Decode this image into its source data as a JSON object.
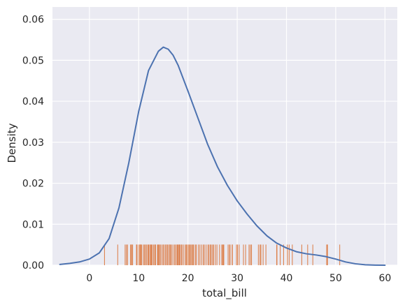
{
  "chart_data": {
    "type": "kde_with_rug",
    "xlabel": "total_bill",
    "ylabel": "Density",
    "xlim": [
      -7.5,
      62.5
    ],
    "ylim": [
      0,
      0.063
    ],
    "xticks": [
      0,
      10,
      20,
      30,
      40,
      50,
      60
    ],
    "yticks": [
      0.0,
      0.01,
      0.02,
      0.03,
      0.04,
      0.05,
      0.06
    ],
    "xtick_labels": [
      "0",
      "10",
      "20",
      "30",
      "40",
      "50",
      "60"
    ],
    "ytick_labels": [
      "0.00",
      "0.01",
      "0.02",
      "0.03",
      "0.04",
      "0.05",
      "0.06"
    ],
    "grid": true,
    "colors": {
      "background": "#eaeaf2",
      "grid": "#ffffff",
      "kde": "#4c72b0",
      "rug": "#dd8452",
      "text": "#262626"
    },
    "kde": {
      "x": [
        -6,
        -4,
        -2,
        0,
        2,
        4,
        6,
        8,
        10,
        12,
        14,
        15,
        16,
        17,
        18,
        20,
        22,
        24,
        26,
        28,
        30,
        32,
        34,
        36,
        38,
        40,
        42,
        44,
        46,
        48,
        50,
        52,
        54,
        56,
        58,
        60
      ],
      "y": [
        0.0002,
        0.00045,
        0.0008,
        0.0015,
        0.003,
        0.0065,
        0.014,
        0.025,
        0.0375,
        0.0475,
        0.0522,
        0.0532,
        0.0527,
        0.0512,
        0.0488,
        0.0425,
        0.036,
        0.0295,
        0.024,
        0.0195,
        0.0157,
        0.0125,
        0.0096,
        0.0072,
        0.0054,
        0.0042,
        0.0033,
        0.0028,
        0.0025,
        0.0021,
        0.0015,
        0.0008,
        0.00035,
        0.0001,
        3e-05,
        1e-05
      ]
    },
    "rug": [
      3.07,
      5.75,
      7.25,
      7.51,
      7.74,
      8.35,
      8.52,
      8.58,
      8.77,
      9.55,
      9.6,
      9.68,
      10.07,
      10.27,
      10.33,
      10.34,
      10.51,
      10.65,
      11.02,
      11.24,
      11.35,
      11.61,
      11.87,
      12.03,
      12.26,
      12.43,
      12.6,
      12.76,
      13.03,
      13.27,
      13.37,
      13.42,
      13.81,
      13.94,
      14.07,
      14.26,
      14.48,
      14.78,
      15.01,
      15.04,
      15.36,
      15.42,
      15.69,
      15.77,
      15.98,
      16.27,
      16.29,
      16.45,
      16.66,
      16.97,
      17.29,
      17.51,
      17.78,
      17.92,
      18.04,
      18.24,
      18.29,
      18.43,
      18.69,
      18.78,
      19.08,
      19.44,
      19.65,
      19.81,
      20.08,
      20.29,
      20.45,
      20.65,
      20.9,
      21.01,
      21.16,
      21.5,
      21.7,
      22.12,
      22.42,
      22.76,
      23.1,
      23.33,
      23.68,
      24.06,
      24.27,
      24.55,
      24.71,
      25.0,
      25.21,
      25.56,
      25.89,
      26.41,
      26.86,
      27.05,
      27.18,
      27.28,
      28.15,
      28.44,
      28.55,
      28.97,
      29.03,
      29.85,
      30.06,
      30.4,
      31.27,
      31.71,
      32.4,
      32.68,
      32.9,
      34.3,
      34.63,
      34.81,
      35.26,
      35.83,
      38.01,
      38.07,
      38.73,
      39.42,
      40.17,
      40.55,
      41.19,
      43.11,
      44.3,
      45.35,
      48.17,
      48.27,
      48.33,
      50.81
    ]
  }
}
